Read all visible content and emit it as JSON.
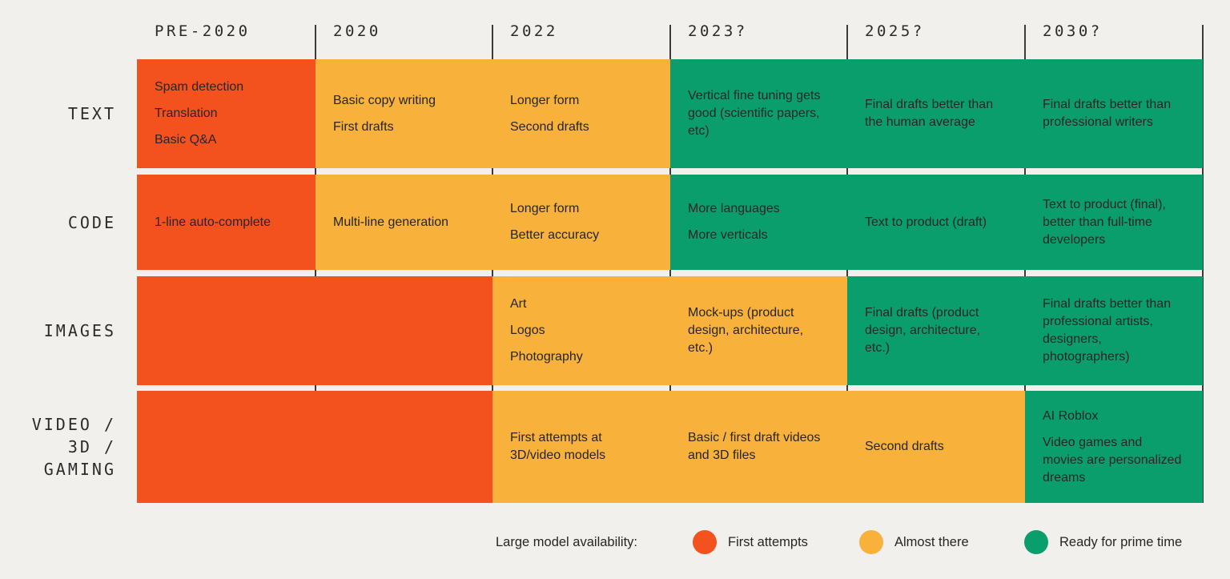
{
  "palette": {
    "background": "#F2F0ED",
    "first_attempts": "#F3521E",
    "almost_there": "#F8B13B",
    "ready_for_prime_time": "#0A9E6D",
    "grid_line": "#3B3B3B",
    "text": "#262626"
  },
  "columns": [
    "PRE-2020",
    "2020",
    "2022",
    "2023?",
    "2025?",
    "2030?"
  ],
  "rows": [
    {
      "key": "text",
      "label_lines": [
        "TEXT"
      ],
      "cells": [
        {
          "status": "first_attempts",
          "items": [
            "Spam detection",
            "Translation",
            "Basic Q&A"
          ]
        },
        {
          "status": "almost_there",
          "items": [
            "Basic copy writing",
            "First drafts"
          ]
        },
        {
          "status": "almost_there",
          "items": [
            "Longer form",
            "Second drafts"
          ]
        },
        {
          "status": "ready_for_prime_time",
          "items": [
            "Vertical fine tuning gets good (scientific papers, etc)"
          ]
        },
        {
          "status": "ready_for_prime_time",
          "items": [
            "Final drafts better than the human average"
          ]
        },
        {
          "status": "ready_for_prime_time",
          "items": [
            "Final drafts better than professional writers"
          ]
        }
      ]
    },
    {
      "key": "code",
      "label_lines": [
        "CODE"
      ],
      "cells": [
        {
          "status": "first_attempts",
          "items": [
            "1-line auto-complete"
          ]
        },
        {
          "status": "almost_there",
          "items": [
            "Multi-line generation"
          ]
        },
        {
          "status": "almost_there",
          "items": [
            "Longer form",
            "Better accuracy"
          ]
        },
        {
          "status": "ready_for_prime_time",
          "items": [
            "More languages",
            "More verticals"
          ]
        },
        {
          "status": "ready_for_prime_time",
          "items": [
            "Text to product (draft)"
          ]
        },
        {
          "status": "ready_for_prime_time",
          "items": [
            "Text to product (final), better than full-time developers"
          ]
        }
      ]
    },
    {
      "key": "images",
      "label_lines": [
        "IMAGES"
      ],
      "cells": [
        {
          "status": "first_attempts",
          "items": []
        },
        {
          "status": "first_attempts",
          "items": []
        },
        {
          "status": "almost_there",
          "items": [
            "Art",
            "Logos",
            "Photography"
          ]
        },
        {
          "status": "almost_there",
          "items": [
            "Mock-ups (product design, architecture, etc.)"
          ]
        },
        {
          "status": "ready_for_prime_time",
          "items": [
            "Final drafts (product design, architecture, etc.)"
          ]
        },
        {
          "status": "ready_for_prime_time",
          "items": [
            "Final drafts better than professional artists, designers, photographers)"
          ]
        }
      ]
    },
    {
      "key": "video-3d-gaming",
      "label_lines": [
        "VIDEO /",
        "3D /",
        "GAMING"
      ],
      "cells": [
        {
          "status": "first_attempts",
          "items": []
        },
        {
          "status": "first_attempts",
          "items": []
        },
        {
          "status": "almost_there",
          "items": [
            "First attempts at 3D/video models"
          ]
        },
        {
          "status": "almost_there",
          "items": [
            "Basic / first draft videos and 3D files"
          ]
        },
        {
          "status": "almost_there",
          "items": [
            "Second drafts"
          ]
        },
        {
          "status": "ready_for_prime_time",
          "items": [
            "AI Roblox",
            "Video games and movies are personalized dreams"
          ]
        }
      ]
    }
  ],
  "legend": {
    "title": "Large model availability:",
    "items": [
      {
        "label": "First attempts",
        "status": "first_attempts"
      },
      {
        "label": "Almost there",
        "status": "almost_there"
      },
      {
        "label": "Ready for prime time",
        "status": "ready_for_prime_time"
      }
    ]
  },
  "chart_data": {
    "type": "heatmap",
    "title": "Large model availability:",
    "x_categories": [
      "PRE-2020",
      "2020",
      "2022",
      "2023?",
      "2025?",
      "2030?"
    ],
    "y_categories": [
      "TEXT",
      "CODE",
      "IMAGES",
      "VIDEO / 3D / GAMING"
    ],
    "levels": [
      "First attempts",
      "Almost there",
      "Ready for prime time"
    ],
    "level_colors": {
      "First attempts": "#F3521E",
      "Almost there": "#F8B13B",
      "Ready for prime time": "#0A9E6D"
    },
    "cells_levels": [
      [
        "First attempts",
        "Almost there",
        "Almost there",
        "Ready for prime time",
        "Ready for prime time",
        "Ready for prime time"
      ],
      [
        "First attempts",
        "Almost there",
        "Almost there",
        "Ready for prime time",
        "Ready for prime time",
        "Ready for prime time"
      ],
      [
        "First attempts",
        "First attempts",
        "Almost there",
        "Almost there",
        "Ready for prime time",
        "Ready for prime time"
      ],
      [
        "First attempts",
        "First attempts",
        "Almost there",
        "Almost there",
        "Almost there",
        "Ready for prime time"
      ]
    ],
    "cells_text": [
      [
        "Spam detection; Translation; Basic Q&A",
        "Basic copy writing; First drafts",
        "Longer form; Second drafts",
        "Vertical fine tuning gets good (scientific papers, etc)",
        "Final drafts better than the human average",
        "Final drafts better than professional writers"
      ],
      [
        "1-line auto-complete",
        "Multi-line generation",
        "Longer form; Better accuracy",
        "More languages; More verticals",
        "Text to product (draft)",
        "Text to product (final), better than full-time developers"
      ],
      [
        "",
        "",
        "Art; Logos; Photography",
        "Mock-ups (product design, architecture, etc.)",
        "Final drafts (product design, architecture, etc.)",
        "Final drafts better than professional artists, designers, photographers)"
      ],
      [
        "",
        "",
        "First attempts at 3D/video models",
        "Basic / first draft videos and 3D files",
        "Second drafts",
        "AI Roblox; Video games and movies are personalized dreams"
      ]
    ],
    "legend_position": "bottom",
    "grid": "vertical column divider lines only"
  }
}
